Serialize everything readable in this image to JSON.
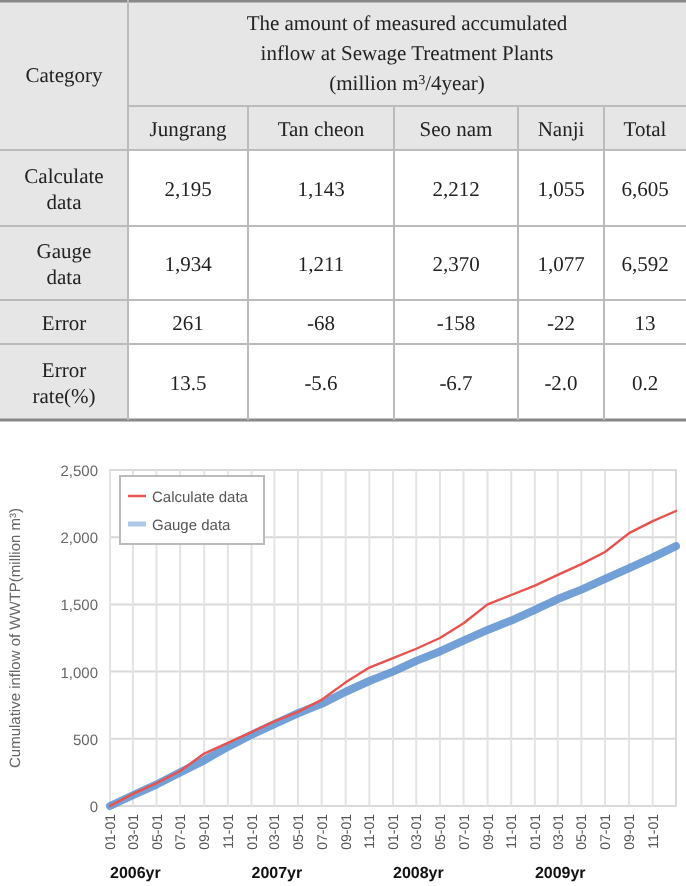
{
  "chart_data": [
    {
      "type": "other",
      "title": "The amount of measured accumulated inflow at Sewage Treatment Plants (million m$^{3}$/4year)",
      "ylabel": "Category",
      "categories": [
        "Jungrang",
        "Tan cheon",
        "Seo nam",
        "Nanji",
        "Total"
      ],
      "y_categories": [
        "Calculate data",
        "Gauge data",
        "Error",
        "Error rate(%)"
      ],
      "cell_labels": [
        [
          "2,195",
          "1,143",
          "2,212",
          "1,055",
          "6,605"
        ],
        [
          "1,934",
          "1,211",
          "2,370",
          "1,077",
          "6,592"
        ],
        [
          "261",
          "-68",
          "-158",
          "-22",
          "13"
        ],
        [
          "13.5",
          "-5.6",
          "-6.7",
          "-2.0",
          "0.2"
        ]
      ]
    },
    {
      "type": "line",
      "ylabel": "Cumulative inflow of WWTP(million m³)",
      "x": [
        "2006-01-01",
        "2006-03-01",
        "2006-05-01",
        "2006-07-01",
        "2006-09-01",
        "2006-11-01",
        "2007-01-01",
        "2007-03-01",
        "2007-05-01",
        "2007-07-01",
        "2007-09-01",
        "2007-11-01",
        "2008-01-01",
        "2008-03-01",
        "2008-05-01",
        "2008-07-01",
        "2008-09-01",
        "2008-11-01",
        "2009-01-01",
        "2009-03-01",
        "2009-05-01",
        "2009-07-01",
        "2009-09-01",
        "2009-11-01",
        "2009-12-31"
      ],
      "series": [
        {
          "name": "Calculate data",
          "color": "#e8524f",
          "values": [
            0,
            90,
            170,
            260,
            390,
            470,
            550,
            630,
            700,
            790,
            920,
            1030,
            1100,
            1170,
            1250,
            1360,
            1500,
            1570,
            1640,
            1720,
            1800,
            1890,
            2030,
            2120,
            2195
          ]
        },
        {
          "name": "Gauge data",
          "color": "#5b8fd0",
          "values": [
            0,
            80,
            160,
            250,
            340,
            440,
            530,
            610,
            690,
            760,
            850,
            930,
            1000,
            1080,
            1150,
            1230,
            1310,
            1380,
            1460,
            1540,
            1610,
            1690,
            1770,
            1850,
            1934
          ]
        }
      ],
      "xlim": [
        "2006-01-01",
        "2009-12-31"
      ],
      "xticks": [
        {
          "value": "2006-01-01",
          "label": "01-01"
        },
        {
          "value": "2006-03-01",
          "label": "03-01"
        },
        {
          "value": "2006-05-01",
          "label": "05-01"
        },
        {
          "value": "2006-07-01",
          "label": "07-01"
        },
        {
          "value": "2006-09-01",
          "label": "09-01"
        },
        {
          "value": "2006-11-01",
          "label": "11-01"
        },
        {
          "value": "2007-01-01",
          "label": "01-01"
        },
        {
          "value": "2007-03-01",
          "label": "03-01"
        },
        {
          "value": "2007-05-01",
          "label": "05-01"
        },
        {
          "value": "2007-07-01",
          "label": "07-01"
        },
        {
          "value": "2007-09-01",
          "label": "09-01"
        },
        {
          "value": "2007-11-01",
          "label": "11-01"
        },
        {
          "value": "2008-01-01",
          "label": "01-01"
        },
        {
          "value": "2008-03-01",
          "label": "03-01"
        },
        {
          "value": "2008-05-01",
          "label": "05-01"
        },
        {
          "value": "2008-07-01",
          "label": "07-01"
        },
        {
          "value": "2008-09-01",
          "label": "09-01"
        },
        {
          "value": "2008-11-01",
          "label": "11-01"
        },
        {
          "value": "2009-01-01",
          "label": "01-01"
        },
        {
          "value": "2009-03-01",
          "label": "03-01"
        },
        {
          "value": "2009-05-01",
          "label": "05-01"
        },
        {
          "value": "2009-07-01",
          "label": "07-01"
        },
        {
          "value": "2009-09-01",
          "label": "09-01"
        },
        {
          "value": "2009-11-01",
          "label": "11-01"
        }
      ],
      "ylim": [
        0,
        2500
      ],
      "yticks": [
        {
          "value": 0,
          "label": "0"
        },
        {
          "value": 500,
          "label": "500"
        },
        {
          "value": 1000,
          "label": "1,000"
        },
        {
          "value": 1500,
          "label": "1,500"
        },
        {
          "value": 2000,
          "label": "2,000"
        },
        {
          "value": 2500,
          "label": "2,500"
        }
      ],
      "annotations": [
        "2006yr",
        "2007yr",
        "2008yr",
        "2009yr"
      ],
      "grid": true,
      "legend": "top left",
      "marker": "none",
      "line_style": "solid"
    }
  ]
}
